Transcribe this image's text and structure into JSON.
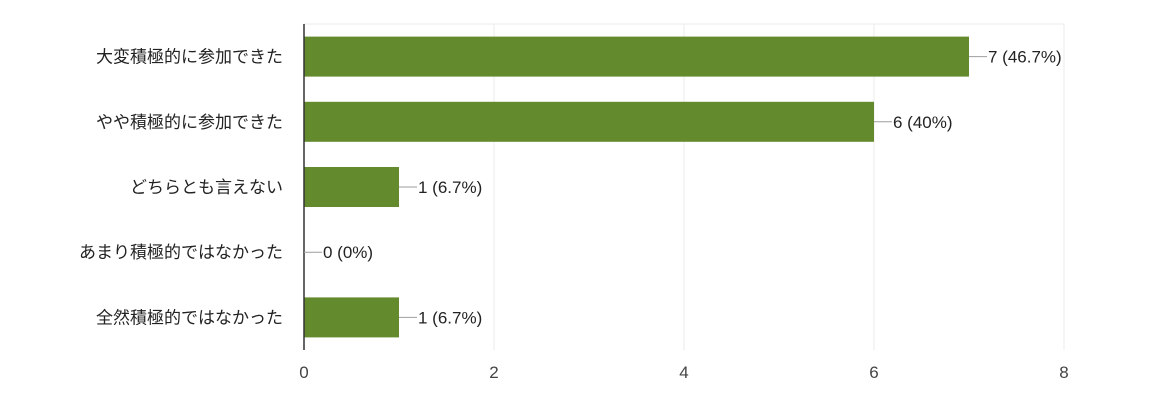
{
  "chart_data": {
    "type": "bar",
    "orientation": "horizontal",
    "categories": [
      "大変積極的に参加できた",
      "やや積極的に参加できた",
      "どちらとも言えない",
      "あまり積極的ではなかった",
      "全然積極的ではなかった"
    ],
    "values": [
      7,
      6,
      1,
      0,
      1
    ],
    "data_labels": [
      "7 (46.7%)",
      "6 (40%)",
      "1 (6.7%)",
      "0 (0%)",
      "1 (6.7%)"
    ],
    "xlim": [
      0,
      8
    ],
    "xticks": [
      "0",
      "2",
      "4",
      "6",
      "8"
    ],
    "grid": true,
    "bar_color": "#648a2e"
  }
}
